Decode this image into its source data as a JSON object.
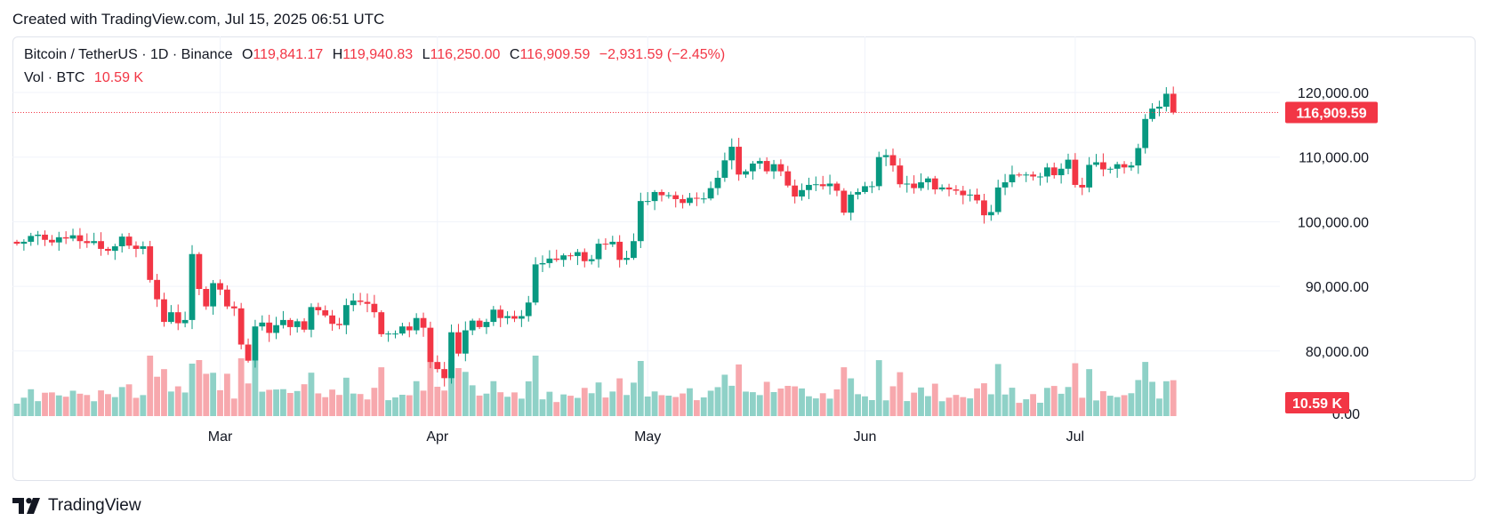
{
  "header": {
    "created_text": "Created with TradingView.com, Jul 15, 2025 06:51 UTC"
  },
  "legend": {
    "symbol": "Bitcoin / TetherUS · 1D · Binance",
    "o_label": "O",
    "o_value": "119,841.17",
    "h_label": "H",
    "h_value": "119,940.83",
    "l_label": "L",
    "l_value": "116,250.00",
    "c_label": "C",
    "c_value": "116,909.59",
    "change": "−2,931.59 (−2.45%)",
    "vol_label": "Vol · BTC",
    "vol_value": "10.59 K"
  },
  "footer": {
    "brand": "TradingView",
    "logo_icon": "tradingview-logo-icon"
  },
  "colors": {
    "up": "#089981",
    "down": "#f23645",
    "vol_up": "#8fd1c7",
    "vol_down": "#f7a8ad",
    "grid": "#f0f3fa"
  },
  "chart_data": {
    "type": "candlestick",
    "symbol": "Bitcoin / TetherUS",
    "interval": "1D",
    "exchange": "Binance",
    "ylim": [
      73000,
      123500
    ],
    "y_ticks": [
      "120,000.00",
      "110,000.00",
      "100,000.00",
      "90,000.00",
      "80,000.00"
    ],
    "y_tick_values": [
      120000,
      110000,
      100000,
      90000,
      80000
    ],
    "x_ticks": [
      "Mar",
      "Apr",
      "May",
      "Jun",
      "Jul"
    ],
    "x_tick_dates": [
      "2025-03-01",
      "2025-04-01",
      "2025-05-01",
      "2025-06-01",
      "2025-07-01"
    ],
    "last_price_label": "116,909.59",
    "last_volume_label": "10.59 K",
    "volume_axis_hint": "0.00",
    "start_date": "2025-01-31",
    "closes": [
      96600,
      96900,
      97800,
      98000,
      97200,
      96800,
      97600,
      97400,
      97900,
      97000,
      96700,
      97000,
      95800,
      95500,
      96200,
      97700,
      96300,
      95800,
      96200,
      91000,
      88000,
      84500,
      86000,
      84300,
      84800,
      95000,
      89600,
      86900,
      90500,
      89500,
      86900,
      86600,
      81000,
      78500,
      83800,
      84400,
      82800,
      84000,
      84800,
      83700,
      84600,
      83300,
      86800,
      86300,
      85500,
      84200,
      84000,
      87100,
      87800,
      87600,
      87300,
      86000,
      82600,
      82700,
      82700,
      83800,
      83200,
      85100,
      83600,
      78300,
      77200,
      75800,
      82900,
      79600,
      83200,
      84700,
      83700,
      84500,
      86400,
      85100,
      85400,
      85000,
      85400,
      87500,
      93400,
      93600,
      94300,
      94100,
      94800,
      94700,
      95300,
      93900,
      94200,
      96600,
      96500,
      96900,
      94100,
      94400,
      97000,
      103200,
      103200,
      104600,
      104100,
      104100,
      103500,
      102900,
      103700,
      103600,
      103600,
      105200,
      106800,
      109500,
      111600,
      107300,
      107800,
      109000,
      109400,
      107800,
      108900,
      107800,
      105600,
      103900,
      104900,
      105700,
      105800,
      105500,
      105900,
      104800,
      101400,
      104200,
      104600,
      105500,
      105500,
      110000,
      110300,
      108700,
      105800,
      105900,
      105200,
      106100,
      106700,
      105000,
      105300,
      105000,
      104800,
      104100,
      104200,
      103300,
      101000,
      101500,
      105300,
      106100,
      107300,
      107200,
      107300,
      107000,
      107000,
      108400,
      107200,
      108200,
      109600,
      105700,
      105300,
      108800,
      109200,
      108100,
      108200,
      108900,
      108400,
      108700,
      111400,
      115900,
      117500,
      117800,
      119800,
      116900
    ]
  }
}
